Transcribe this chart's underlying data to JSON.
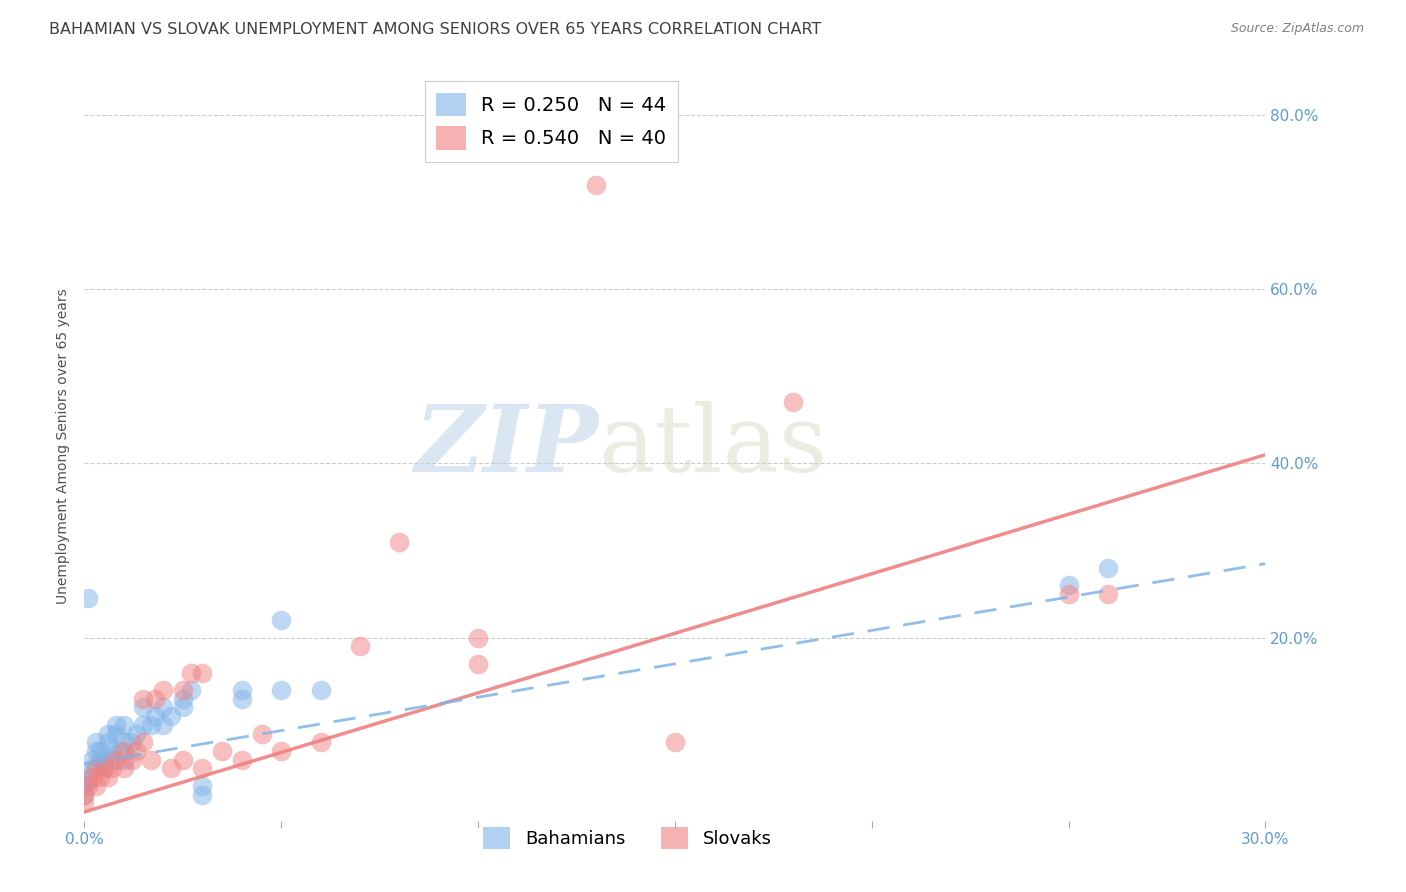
{
  "title": "BAHAMIAN VS SLOVAK UNEMPLOYMENT AMONG SENIORS OVER 65 YEARS CORRELATION CHART",
  "source": "Source: ZipAtlas.com",
  "ylabel": "Unemployment Among Seniors over 65 years",
  "xlim": [
    0.0,
    0.3
  ],
  "ylim": [
    -0.01,
    0.85
  ],
  "bahamian_R": 0.25,
  "bahamian_N": 44,
  "slovak_R": 0.54,
  "slovak_N": 40,
  "bahamian_color": "#7fb3e8",
  "slovak_color": "#f08080",
  "bahamian_scatter": [
    [
      0.0,
      0.02
    ],
    [
      0.0,
      0.03
    ],
    [
      0.001,
      0.035
    ],
    [
      0.001,
      0.04
    ],
    [
      0.002,
      0.05
    ],
    [
      0.002,
      0.06
    ],
    [
      0.003,
      0.07
    ],
    [
      0.003,
      0.08
    ],
    [
      0.004,
      0.06
    ],
    [
      0.004,
      0.07
    ],
    [
      0.005,
      0.05
    ],
    [
      0.005,
      0.06
    ],
    [
      0.006,
      0.08
    ],
    [
      0.006,
      0.09
    ],
    [
      0.007,
      0.06
    ],
    [
      0.007,
      0.07
    ],
    [
      0.008,
      0.09
    ],
    [
      0.008,
      0.1
    ],
    [
      0.009,
      0.07
    ],
    [
      0.01,
      0.06
    ],
    [
      0.01,
      0.08
    ],
    [
      0.01,
      0.1
    ],
    [
      0.012,
      0.08
    ],
    [
      0.013,
      0.09
    ],
    [
      0.015,
      0.1
    ],
    [
      0.015,
      0.12
    ],
    [
      0.017,
      0.1
    ],
    [
      0.018,
      0.11
    ],
    [
      0.02,
      0.1
    ],
    [
      0.02,
      0.12
    ],
    [
      0.022,
      0.11
    ],
    [
      0.025,
      0.12
    ],
    [
      0.025,
      0.13
    ],
    [
      0.027,
      0.14
    ],
    [
      0.03,
      0.02
    ],
    [
      0.03,
      0.03
    ],
    [
      0.001,
      0.245
    ],
    [
      0.04,
      0.13
    ],
    [
      0.04,
      0.14
    ],
    [
      0.05,
      0.14
    ],
    [
      0.05,
      0.22
    ],
    [
      0.06,
      0.14
    ],
    [
      0.25,
      0.26
    ],
    [
      0.26,
      0.28
    ]
  ],
  "slovak_scatter": [
    [
      0.0,
      0.01
    ],
    [
      0.0,
      0.02
    ],
    [
      0.001,
      0.03
    ],
    [
      0.002,
      0.04
    ],
    [
      0.003,
      0.03
    ],
    [
      0.003,
      0.05
    ],
    [
      0.004,
      0.04
    ],
    [
      0.005,
      0.05
    ],
    [
      0.006,
      0.04
    ],
    [
      0.007,
      0.05
    ],
    [
      0.008,
      0.06
    ],
    [
      0.01,
      0.05
    ],
    [
      0.01,
      0.07
    ],
    [
      0.012,
      0.06
    ],
    [
      0.013,
      0.07
    ],
    [
      0.015,
      0.08
    ],
    [
      0.015,
      0.13
    ],
    [
      0.017,
      0.06
    ],
    [
      0.018,
      0.13
    ],
    [
      0.02,
      0.14
    ],
    [
      0.022,
      0.05
    ],
    [
      0.025,
      0.06
    ],
    [
      0.025,
      0.14
    ],
    [
      0.027,
      0.16
    ],
    [
      0.03,
      0.05
    ],
    [
      0.03,
      0.16
    ],
    [
      0.035,
      0.07
    ],
    [
      0.04,
      0.06
    ],
    [
      0.045,
      0.09
    ],
    [
      0.05,
      0.07
    ],
    [
      0.06,
      0.08
    ],
    [
      0.07,
      0.19
    ],
    [
      0.08,
      0.31
    ],
    [
      0.1,
      0.2
    ],
    [
      0.1,
      0.17
    ],
    [
      0.13,
      0.72
    ],
    [
      0.15,
      0.08
    ],
    [
      0.18,
      0.47
    ],
    [
      0.26,
      0.25
    ],
    [
      0.25,
      0.25
    ]
  ],
  "bahamian_line": {
    "x0": 0.0,
    "y0": 0.055,
    "x1": 0.3,
    "y1": 0.285
  },
  "slovak_line": {
    "x0": 0.0,
    "y0": 0.0,
    "x1": 0.3,
    "y1": 0.41
  },
  "watermark_zip": "ZIP",
  "watermark_atlas": "atlas",
  "bg_color": "#ffffff",
  "grid_color": "#cccccc",
  "axis_color": "#5b9bd5",
  "title_color": "#404040",
  "title_fontsize": 11.5,
  "ylabel_fontsize": 10,
  "tick_fontsize": 11,
  "source_fontsize": 9,
  "legend_fontsize": 14
}
